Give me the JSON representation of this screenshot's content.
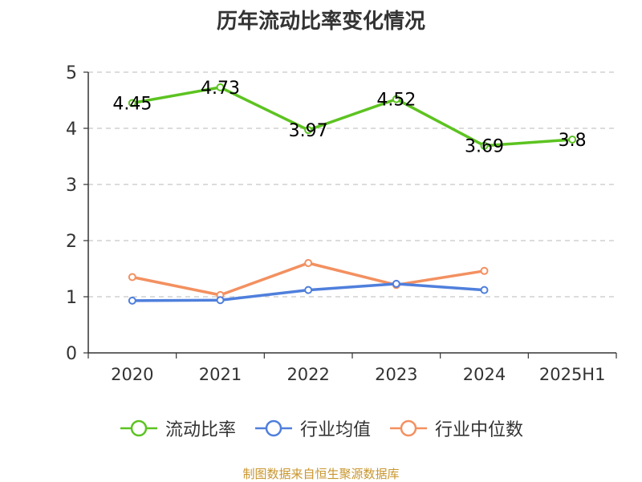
{
  "title": "历年流动比率变化情况",
  "source": "制图数据来自恒生聚源数据库",
  "chart_data": {
    "type": "line",
    "categories": [
      "2020",
      "2021",
      "2022",
      "2023",
      "2024",
      "2025H1"
    ],
    "ylim": [
      0,
      5
    ],
    "yticks": [
      0,
      1,
      2,
      3,
      4,
      5
    ],
    "grid": true,
    "legend_position": "bottom",
    "series": [
      {
        "name": "流动比率",
        "color": "#5cc320",
        "values": [
          4.45,
          4.73,
          3.97,
          4.52,
          3.69,
          3.8
        ],
        "labels": [
          "4.45",
          "4.73",
          "3.97",
          "4.52",
          "3.69",
          "3.8"
        ]
      },
      {
        "name": "行业均值",
        "color": "#4f7fdc",
        "values": [
          0.93,
          0.94,
          1.12,
          1.23,
          1.12,
          null
        ]
      },
      {
        "name": "行业中位数",
        "color": "#f39060",
        "values": [
          1.35,
          1.03,
          1.6,
          1.21,
          1.46,
          null
        ]
      }
    ]
  }
}
